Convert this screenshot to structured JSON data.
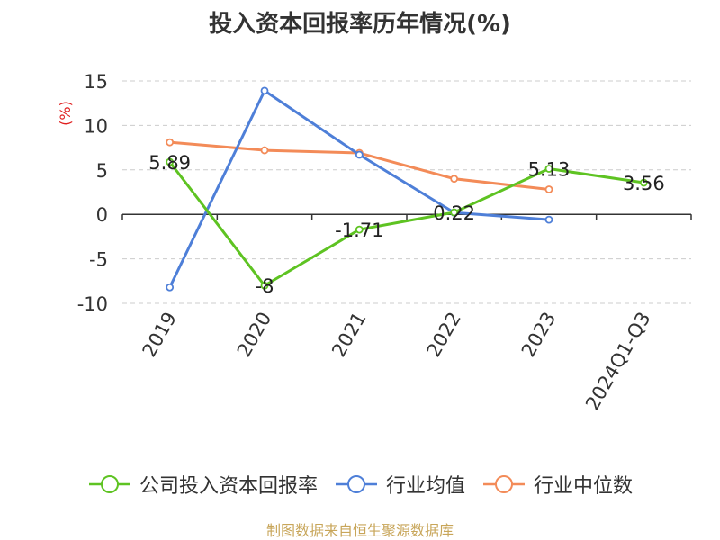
{
  "title": "投入资本回报率历年情况(%)",
  "source": "制图数据来自恒生聚源数据库",
  "chart_data": {
    "type": "line",
    "categories": [
      "2019",
      "2020",
      "2021",
      "2022",
      "2023",
      "2024Q1-Q3"
    ],
    "ylabel": "(%)",
    "ylim": [
      -10,
      15
    ],
    "yticks": [
      15,
      10,
      5,
      0,
      -5,
      -10
    ],
    "grid": true,
    "legend_position": "bottom",
    "series": [
      {
        "name": "公司投入资本回报率",
        "color": "#5ec322",
        "values": [
          5.89,
          -8,
          -1.71,
          0.22,
          5.13,
          3.56
        ],
        "labels": [
          "5.89",
          "-8",
          "-1.71",
          "0.22",
          "5.13",
          "3.56"
        ]
      },
      {
        "name": "行业均值",
        "color": "#4e7fd8",
        "values": [
          -8.2,
          13.9,
          6.7,
          0.2,
          -0.6,
          null
        ]
      },
      {
        "name": "行业中位数",
        "color": "#f38b58",
        "values": [
          8.1,
          7.2,
          6.9,
          4.0,
          2.8,
          null
        ]
      }
    ]
  }
}
